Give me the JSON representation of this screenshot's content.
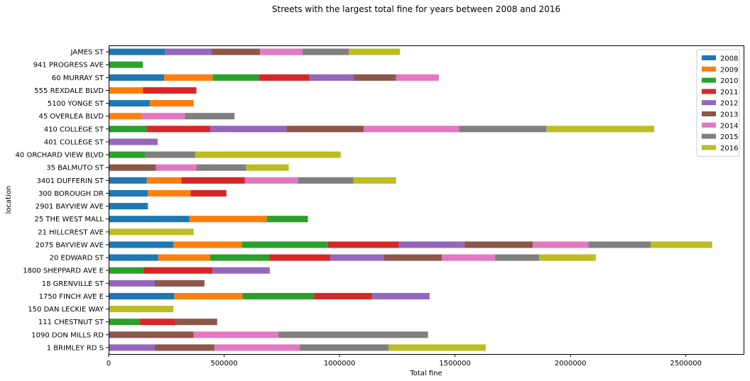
{
  "chart_data": {
    "type": "bar",
    "orientation": "horizontal",
    "stacked": true,
    "title": "Streets with the largest total fine for years between 2008 and 2016",
    "xlabel": "Total fine",
    "ylabel": "location",
    "xlim": [
      0,
      2750000
    ],
    "x_ticks": [
      0,
      500000,
      1000000,
      1500000,
      2000000,
      2500000
    ],
    "x_tick_labels": [
      "0",
      "500000",
      "1000000",
      "1500000",
      "2000000",
      "2500000"
    ],
    "grid": false,
    "legend_position": "top-right",
    "categories": [
      "JAMES ST",
      "941 PROGRESS AVE",
      "60 MURRAY ST",
      "555 REXDALE BLVD",
      "5100 YONGE ST",
      "45 OVERLEA BLVD",
      "410 COLLEGE ST",
      "401 COLLEGE ST",
      "40 ORCHARD VIEW BLVD",
      "35 BALMUTO ST",
      "3401 DUFFERIN ST",
      "300 BOROUGH DR",
      "2901 BAYVIEW AVE",
      "25 THE WEST MALL",
      "21 HILLCREST AVE",
      "2075 BAYVIEW AVE",
      "20 EDWARD ST",
      "1800 SHEPPARD AVE E",
      "18 GRENVILLE ST",
      "1750 FINCH AVE E",
      "150 DAN LECKIE WAY",
      "111 CHESTNUT ST",
      "1090 DON MILLS RD",
      "1 BRIMLEY RD S"
    ],
    "series": [
      {
        "name": "2008",
        "color": "#1f77b4",
        "values": [
          245000,
          0,
          240000,
          0,
          178000,
          0,
          0,
          0,
          0,
          0,
          165000,
          170000,
          170000,
          350000,
          0,
          280000,
          215000,
          0,
          0,
          285000,
          0,
          0,
          0,
          0
        ]
      },
      {
        "name": "2009",
        "color": "#ff7f0e",
        "values": [
          0,
          0,
          210000,
          148000,
          190000,
          143000,
          0,
          0,
          0,
          0,
          150000,
          185000,
          0,
          335000,
          0,
          297000,
          225000,
          0,
          0,
          295000,
          0,
          0,
          0,
          0
        ]
      },
      {
        "name": "2010",
        "color": "#2ca02c",
        "values": [
          0,
          148000,
          200000,
          0,
          0,
          0,
          165000,
          0,
          157000,
          0,
          0,
          0,
          0,
          178000,
          0,
          373000,
          255000,
          150000,
          0,
          310000,
          0,
          135000,
          0,
          0
        ]
      },
      {
        "name": "2011",
        "color": "#d62728",
        "values": [
          0,
          0,
          220000,
          232000,
          0,
          0,
          275000,
          0,
          0,
          0,
          275000,
          155000,
          0,
          0,
          0,
          307000,
          265000,
          300000,
          0,
          250000,
          0,
          155000,
          0,
          0
        ]
      },
      {
        "name": "2012",
        "color": "#9467bd",
        "values": [
          200000,
          0,
          190000,
          0,
          0,
          0,
          330000,
          212000,
          0,
          0,
          0,
          0,
          0,
          0,
          0,
          285000,
          230000,
          248000,
          200000,
          250000,
          0,
          0,
          0,
          200000
        ]
      },
      {
        "name": "2013",
        "color": "#8c564b",
        "values": [
          210000,
          0,
          185000,
          0,
          0,
          0,
          335000,
          0,
          0,
          205000,
          0,
          0,
          0,
          0,
          0,
          295000,
          253000,
          0,
          215000,
          0,
          0,
          180000,
          368000,
          258000
        ]
      },
      {
        "name": "2014",
        "color": "#e377c2",
        "values": [
          185000,
          0,
          185000,
          0,
          0,
          187000,
          413000,
          0,
          0,
          175000,
          230000,
          0,
          0,
          0,
          0,
          240000,
          230000,
          0,
          0,
          0,
          0,
          0,
          367000,
          370000
        ]
      },
      {
        "name": "2015",
        "color": "#7f7f7f",
        "values": [
          200000,
          0,
          0,
          0,
          0,
          215000,
          378000,
          0,
          218000,
          215000,
          240000,
          0,
          0,
          0,
          0,
          270000,
          192000,
          0,
          0,
          0,
          0,
          0,
          648000,
          385000
        ]
      },
      {
        "name": "2016",
        "color": "#bcbd22",
        "values": [
          222000,
          0,
          0,
          0,
          0,
          0,
          467000,
          0,
          630000,
          185000,
          185000,
          0,
          0,
          0,
          368000,
          267000,
          245000,
          0,
          0,
          0,
          280000,
          0,
          0,
          420000
        ]
      }
    ]
  }
}
